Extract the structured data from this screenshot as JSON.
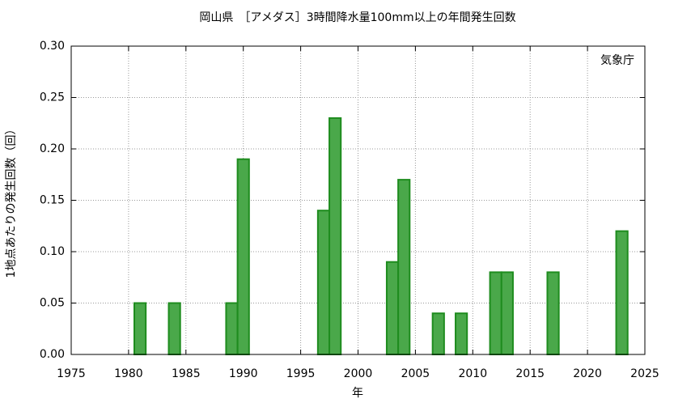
{
  "chart_data": {
    "type": "bar",
    "title": "岡山県　［アメダス］3時間降水量100mm以上の年間発生回数",
    "annotation": "気象庁",
    "xlabel": "年",
    "ylabel": "1地点あたりの発生回数（回）",
    "x": [
      1981,
      1984,
      1989,
      1990,
      1997,
      1998,
      2003,
      2004,
      2007,
      2009,
      2012,
      2013,
      2017,
      2023
    ],
    "values": [
      0.05,
      0.05,
      0.05,
      0.19,
      0.14,
      0.23,
      0.09,
      0.17,
      0.04,
      0.04,
      0.08,
      0.08,
      0.08,
      0.12
    ],
    "color": "#4aa84a",
    "edgecolor": "#1e8c1e",
    "xlim": [
      1975,
      2025
    ],
    "xticks": [
      1975,
      1980,
      1985,
      1990,
      1995,
      2000,
      2005,
      2010,
      2015,
      2020,
      2025
    ],
    "ylim": [
      0,
      0.3
    ],
    "yticks": [
      {
        "value": 0,
        "label": "0.00"
      },
      {
        "value": 0.05,
        "label": "0.05"
      },
      {
        "value": 0.1,
        "label": "0.10"
      },
      {
        "value": 0.15,
        "label": "0.15"
      },
      {
        "value": 0.2,
        "label": "0.20"
      },
      {
        "value": 0.25,
        "label": "0.25"
      },
      {
        "value": 0.3,
        "label": "0.30"
      }
    ],
    "grid": true
  }
}
